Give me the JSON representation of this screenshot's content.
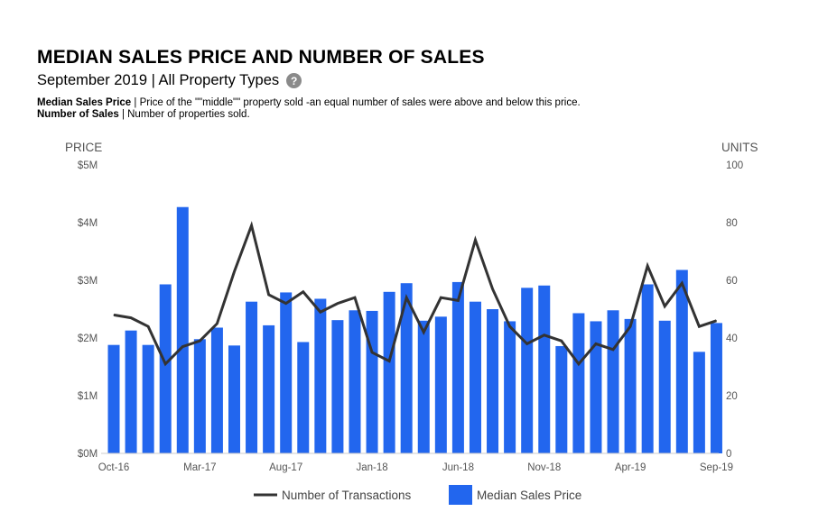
{
  "header": {
    "title": "MEDIAN SALES PRICE AND NUMBER OF SALES",
    "subtitle": "September 2019 | All Property Types",
    "help_icon": "?",
    "def1_term": "Median Sales Price",
    "def1_text": " | Price of the \"\"middle\"\" property sold -an equal number of sales were above and below this price.",
    "def2_term": "Number of Sales",
    "def2_text": " | Number of properties sold."
  },
  "chart_data": {
    "type": "bar",
    "title": "MEDIAN SALES PRICE AND NUMBER OF SALES",
    "categories": [
      "Oct-16",
      "Nov-16",
      "Dec-16",
      "Jan-17",
      "Feb-17",
      "Mar-17",
      "Apr-17",
      "May-17",
      "Jun-17",
      "Jul-17",
      "Aug-17",
      "Sep-17",
      "Oct-17",
      "Nov-17",
      "Dec-17",
      "Jan-18",
      "Feb-18",
      "Mar-18",
      "Apr-18",
      "May-18",
      "Jun-18",
      "Jul-18",
      "Aug-18",
      "Sep-18",
      "Oct-18",
      "Nov-18",
      "Dec-18",
      "Jan-19",
      "Feb-19",
      "Mar-19",
      "Apr-19",
      "May-19",
      "Jun-19",
      "Jul-19",
      "Aug-19",
      "Sep-19"
    ],
    "x_tick_labels": [
      "Oct-16",
      "Mar-17",
      "Aug-17",
      "Jan-18",
      "Jun-18",
      "Nov-18",
      "Apr-19",
      "Sep-19"
    ],
    "x_tick_indices": [
      0,
      5,
      10,
      15,
      20,
      25,
      30,
      35
    ],
    "left_axis": {
      "title": "PRICE",
      "ticks": [
        "$0M",
        "$1M",
        "$2M",
        "$3M",
        "$4M",
        "$5M"
      ],
      "range": [
        0,
        5
      ]
    },
    "right_axis": {
      "title": "UNITS",
      "ticks": [
        "0",
        "20",
        "40",
        "60",
        "80",
        "100"
      ],
      "range": [
        0,
        100
      ]
    },
    "series": [
      {
        "name": "Median Sales Price",
        "type": "bar",
        "axis": "left",
        "color": "#2266ee",
        "values": [
          1.88,
          2.13,
          1.88,
          2.93,
          4.27,
          1.98,
          2.18,
          1.87,
          2.63,
          2.22,
          2.79,
          1.93,
          2.68,
          2.31,
          2.48,
          2.47,
          2.8,
          2.95,
          2.3,
          2.37,
          2.97,
          2.63,
          2.5,
          2.29,
          2.87,
          2.91,
          1.86,
          2.43,
          2.29,
          2.48,
          2.33,
          2.93,
          2.3,
          3.18,
          1.76,
          2.26
        ]
      },
      {
        "name": "Number of Transactions",
        "type": "line",
        "axis": "right",
        "color": "#333333",
        "values": [
          48,
          47,
          44,
          31,
          37,
          39,
          45,
          63,
          79,
          55,
          52,
          56,
          49,
          52,
          54,
          35,
          32,
          54,
          42,
          54,
          53,
          74,
          57,
          44,
          38,
          41,
          39,
          31,
          38,
          36,
          44,
          65,
          51,
          59,
          44,
          46
        ]
      }
    ],
    "legend": [
      "Number of Transactions",
      "Median Sales Price"
    ],
    "legend_position": "bottom",
    "grid": false
  }
}
